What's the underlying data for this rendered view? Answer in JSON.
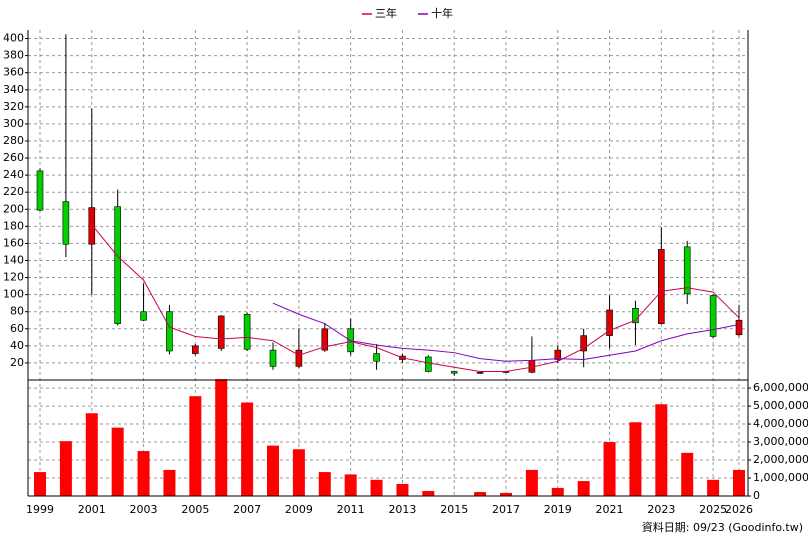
{
  "chart_data": [
    {
      "type": "candlestick",
      "up_color": "#e00000",
      "down_color": "#00d000",
      "open": [
        245,
        209,
        159,
        203,
        80,
        80,
        31,
        37,
        77,
        35,
        16,
        35,
        60,
        31,
        24,
        27,
        10,
        8,
        9,
        9,
        24,
        34,
        52,
        84,
        66,
        156,
        99,
        53
      ],
      "high": [
        248,
        405,
        318,
        223,
        113,
        88,
        42,
        76,
        79,
        44,
        60,
        67,
        72,
        42,
        31,
        29,
        11,
        10,
        11,
        51,
        40,
        60,
        99,
        93,
        179,
        163,
        100,
        88
      ],
      "low": [
        198,
        144,
        100,
        64,
        69,
        30,
        29,
        34,
        34,
        12,
        14,
        33,
        29,
        12,
        20,
        9,
        5,
        7,
        8,
        8,
        20,
        15,
        37,
        41,
        65,
        89,
        49,
        51
      ],
      "close": [
        199,
        159,
        202,
        66,
        70,
        34,
        40,
        75,
        36,
        16,
        35,
        60,
        33,
        22,
        28,
        10,
        8,
        9,
        10,
        23,
        35,
        52,
        82,
        67,
        153,
        101,
        51,
        70
      ],
      "series": [
        {
          "name": "三年",
          "color": "#d0004c",
          "values": [
            null,
            null,
            182,
            145,
            117,
            62,
            51,
            48,
            50,
            46,
            29,
            39,
            45,
            38,
            26,
            20,
            15,
            10,
            10,
            15,
            22,
            37,
            58,
            70,
            104,
            108,
            103,
            73
          ]
        },
        {
          "name": "十年",
          "color": "#8000c0",
          "values": [
            null,
            null,
            null,
            null,
            null,
            null,
            null,
            null,
            null,
            90,
            77,
            66,
            46,
            41,
            37,
            35,
            32,
            25,
            22,
            23,
            25,
            24,
            29,
            34,
            46,
            54,
            59,
            65
          ]
        }
      ],
      "ylim": [
        0,
        410
      ],
      "yticks": [
        20,
        40,
        60,
        80,
        100,
        120,
        140,
        160,
        180,
        200,
        220,
        240,
        260,
        280,
        300,
        320,
        340,
        360,
        380,
        400
      ],
      "grid": true,
      "legend": "top"
    },
    {
      "type": "bar",
      "categories": [
        "1999",
        null,
        "2001",
        null,
        "2003",
        null,
        "2005",
        null,
        "2007",
        null,
        "2009",
        null,
        "2011",
        null,
        "2013",
        null,
        "2015",
        null,
        "2017",
        null,
        "2019",
        null,
        "2021",
        null,
        "2023",
        null,
        "2025",
        "2026"
      ],
      "values": [
        1330000,
        3050000,
        4600000,
        3800000,
        2500000,
        1450000,
        5550000,
        6500000,
        5200000,
        2800000,
        2600000,
        1330000,
        1200000,
        900000,
        670000,
        280000,
        20000,
        220000,
        170000,
        1450000,
        450000,
        830000,
        3000000,
        4100000,
        5100000,
        2400000,
        900000,
        1450000
      ],
      "color": "#ff0000",
      "ylim": [
        0,
        6450000
      ],
      "yticks": [
        {
          "value": 0,
          "label": "0"
        },
        {
          "value": 1000000,
          "label": "1,000,000"
        },
        {
          "value": 2000000,
          "label": "2,000,000"
        },
        {
          "value": 3000000,
          "label": "3,000,000"
        },
        {
          "value": 4000000,
          "label": "4,000,000"
        },
        {
          "value": 5000000,
          "label": "5,000,000"
        },
        {
          "value": 6000000,
          "label": "6,000,000"
        }
      ],
      "axis_side": "right",
      "grid": true,
      "note": "資料日期: 09/23 (Goodinfo.tw)"
    }
  ]
}
